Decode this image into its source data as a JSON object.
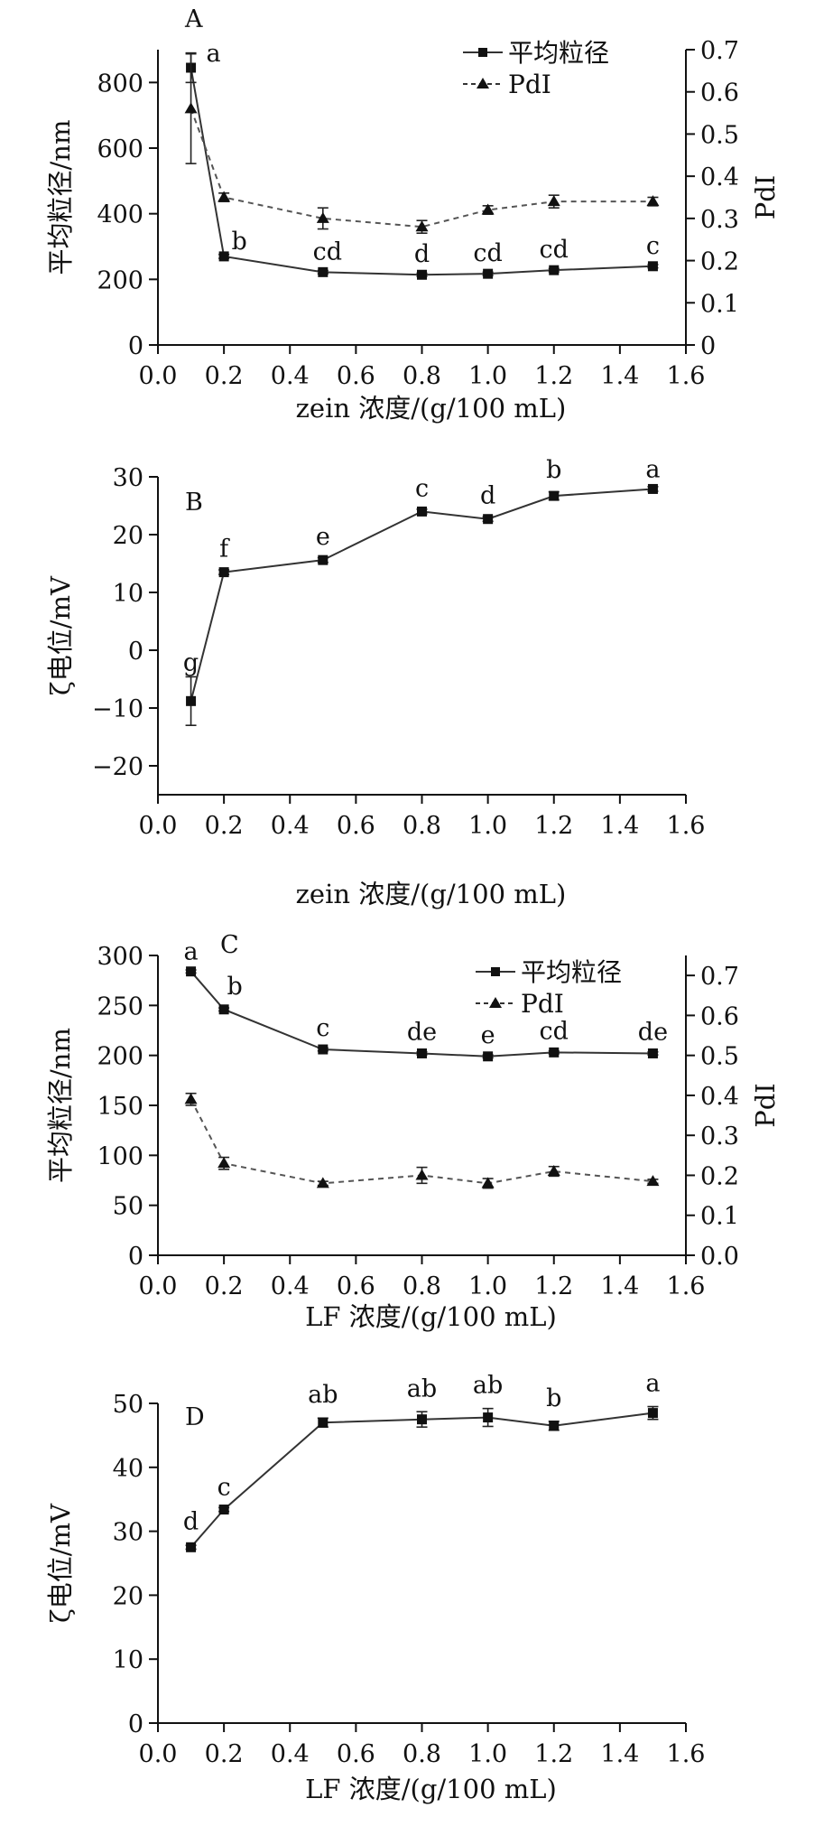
{
  "chart_data": [
    {
      "panel": "A",
      "type": "line",
      "x": [
        0.1,
        0.2,
        0.5,
        0.8,
        1.0,
        1.2,
        1.5
      ],
      "xlabel": "zein 浓度/(g/100 mL)",
      "xlim": [
        0.0,
        1.6
      ],
      "xticks": [
        "0.0",
        "0.2",
        "0.4",
        "0.6",
        "0.8",
        "1.0",
        "1.2",
        "1.4",
        "1.6"
      ],
      "ylabel": "平均粒径/nm",
      "ylim": [
        0,
        900
      ],
      "yticks": [
        "0",
        "200",
        "400",
        "600",
        "800"
      ],
      "y2label": "PdI",
      "y2lim": [
        0,
        0.7
      ],
      "y2ticks": [
        "0",
        "0.1",
        "0.2",
        "0.3",
        "0.4",
        "0.5",
        "0.6",
        "0.7"
      ],
      "legend": "top-right",
      "series": [
        {
          "name": "平均粒径",
          "axis": "left",
          "marker": "square",
          "line": "solid",
          "values": [
            845,
            270,
            222,
            214,
            217,
            228,
            240
          ],
          "errors": [
            45,
            6,
            5,
            5,
            5,
            5,
            5
          ],
          "labels": [
            "a",
            "b",
            "cd",
            "d",
            "cd",
            "cd",
            "c"
          ]
        },
        {
          "name": "PdI",
          "axis": "right",
          "marker": "triangle",
          "line": "dashed",
          "values": [
            0.56,
            0.35,
            0.3,
            0.28,
            0.32,
            0.34,
            0.34
          ],
          "errors": [
            0.13,
            0.01,
            0.025,
            0.015,
            0.01,
            0.015,
            0.01
          ]
        }
      ]
    },
    {
      "panel": "B",
      "type": "line",
      "x": [
        0.1,
        0.2,
        0.5,
        0.8,
        1.0,
        1.2,
        1.5
      ],
      "xlabel": "zein 浓度/(g/100 mL)",
      "xlim": [
        0.0,
        1.6
      ],
      "xticks": [
        "0.0",
        "0.2",
        "0.4",
        "0.6",
        "0.8",
        "1.0",
        "1.2",
        "1.4",
        "1.6"
      ],
      "ylabel": "ζ电位/mV",
      "ylim": [
        -25,
        30
      ],
      "yticks": [
        "−20",
        "−10",
        "0",
        "10",
        "20",
        "30"
      ],
      "series": [
        {
          "name": "",
          "axis": "left",
          "marker": "square",
          "line": "solid",
          "values": [
            -8.8,
            13.5,
            15.6,
            24.0,
            22.7,
            26.7,
            27.9
          ],
          "errors": [
            4.2,
            0.4,
            0.4,
            0.4,
            0.4,
            0.7,
            0.4
          ],
          "labels": [
            "g",
            "f",
            "e",
            "c",
            "d",
            "b",
            "a"
          ]
        }
      ]
    },
    {
      "panel": "C",
      "type": "line",
      "x": [
        0.1,
        0.2,
        0.5,
        0.8,
        1.0,
        1.2,
        1.5
      ],
      "xlabel": "LF 浓度/(g/100 mL)",
      "xlim": [
        0.0,
        1.6
      ],
      "xticks": [
        "0.0",
        "0.2",
        "0.4",
        "0.6",
        "0.8",
        "1.0",
        "1.2",
        "1.4",
        "1.6"
      ],
      "ylabel": "平均粒径/nm",
      "ylim": [
        0,
        300
      ],
      "yticks": [
        "0",
        "50",
        "100",
        "150",
        "200",
        "250",
        "300"
      ],
      "y2label": "PdI",
      "y2lim": [
        0.0,
        0.75
      ],
      "y2ticks": [
        "0.0",
        "0.1",
        "0.2",
        "0.3",
        "0.4",
        "0.5",
        "0.6",
        "0.7"
      ],
      "legend": "top-right",
      "series": [
        {
          "name": "平均粒径",
          "axis": "left",
          "marker": "square",
          "line": "solid",
          "values": [
            284,
            246,
            206,
            202,
            199,
            203,
            202
          ],
          "errors": [
            1.5,
            1.5,
            1.5,
            1.5,
            1.5,
            1.5,
            1.5
          ],
          "labels": [
            "a",
            "b",
            "c",
            "de",
            "e",
            "cd",
            "de"
          ]
        },
        {
          "name": "PdI",
          "axis": "right",
          "marker": "triangle",
          "line": "dashed",
          "values": [
            0.39,
            0.23,
            0.18,
            0.2,
            0.18,
            0.21,
            0.185
          ],
          "errors": [
            0.015,
            0.015,
            0.005,
            0.02,
            0.012,
            0.012,
            0.005
          ]
        }
      ]
    },
    {
      "panel": "D",
      "type": "line",
      "x": [
        0.1,
        0.2,
        0.5,
        0.8,
        1.0,
        1.2,
        1.5
      ],
      "xlabel": "LF 浓度/(g/100 mL)",
      "xlim": [
        0.0,
        1.6
      ],
      "xticks": [
        "0.0",
        "0.2",
        "0.4",
        "0.6",
        "0.8",
        "1.0",
        "1.2",
        "1.4",
        "1.6"
      ],
      "ylabel": "ζ电位/mV",
      "ylim": [
        0,
        50
      ],
      "yticks": [
        "0",
        "10",
        "20",
        "30",
        "40",
        "50"
      ],
      "series": [
        {
          "name": "",
          "axis": "left",
          "marker": "square",
          "line": "solid",
          "values": [
            27.5,
            33.4,
            47.0,
            47.5,
            47.8,
            46.5,
            48.5
          ],
          "errors": [
            0.3,
            0.3,
            0.7,
            1.2,
            1.4,
            0.7,
            1.0
          ],
          "labels": [
            "d",
            "c",
            "ab",
            "ab",
            "ab",
            "b",
            "a"
          ]
        }
      ]
    }
  ]
}
